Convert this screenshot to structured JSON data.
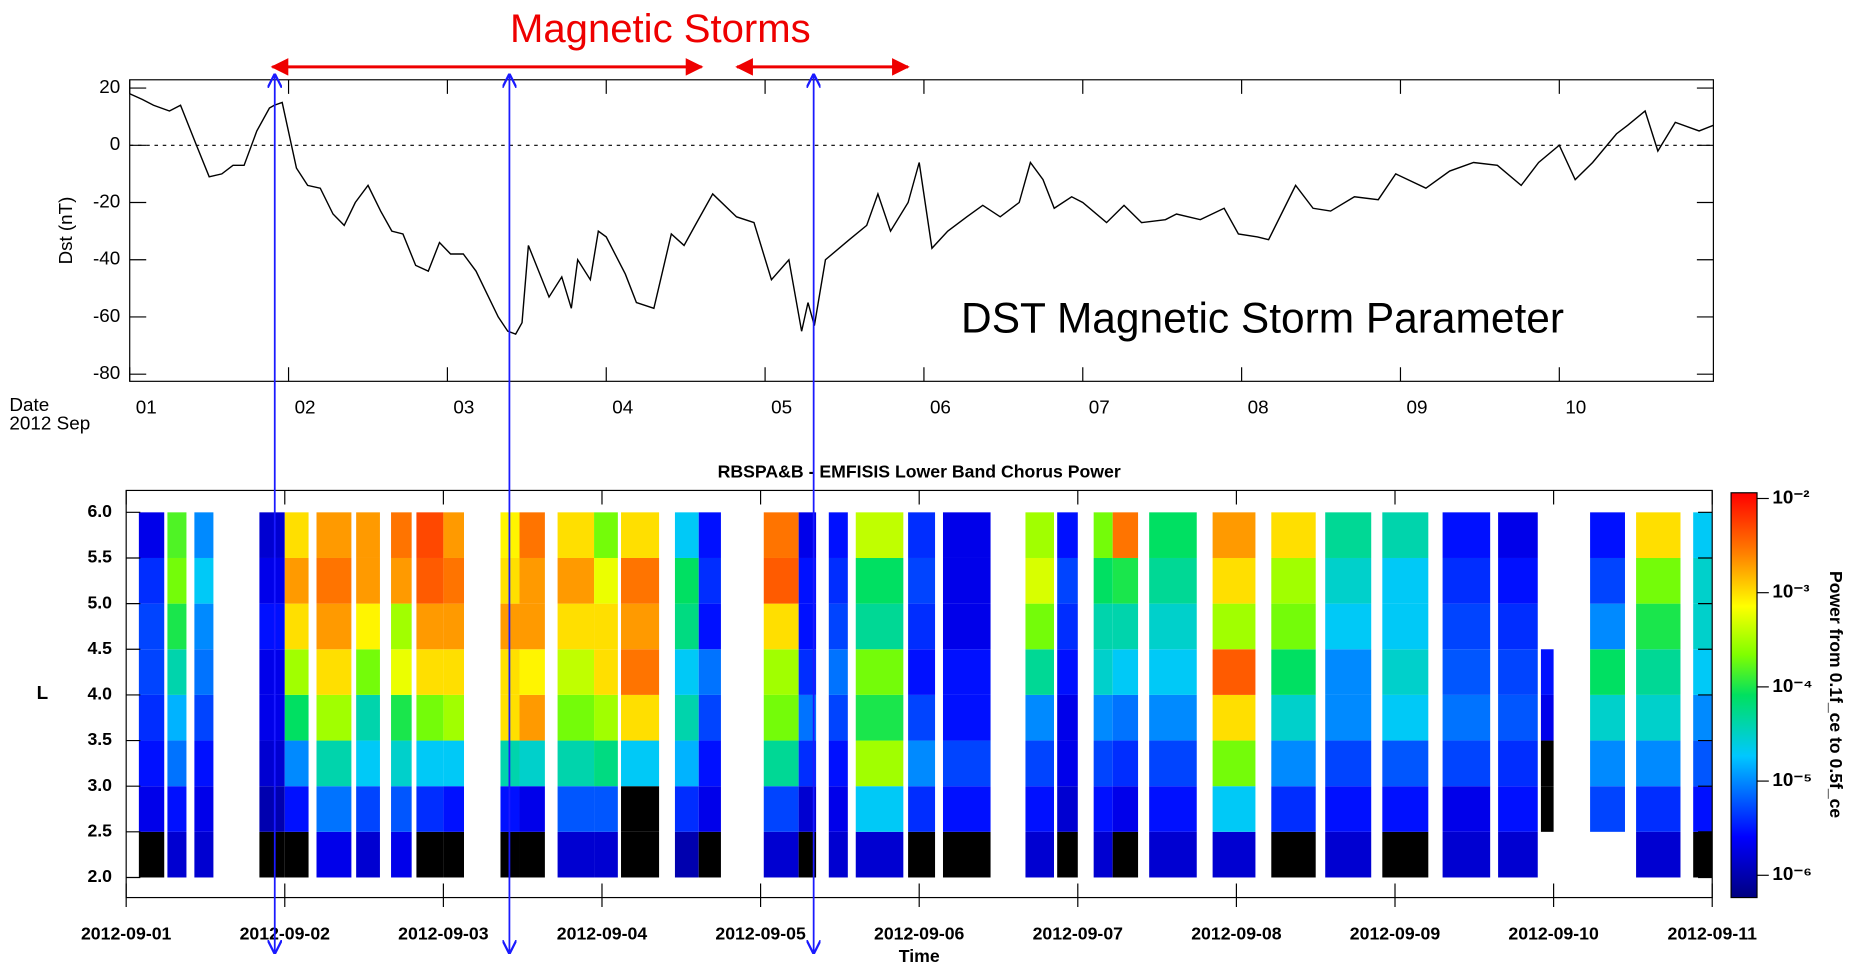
{
  "chart_data": [
    {
      "type": "line",
      "ylabel": "Dst (nT)",
      "xlabel": "Date",
      "xlabel_sub": "2012 Sep",
      "annotations": [
        "Magnetic Storms",
        "DST Magnetic Storm Parameter"
      ],
      "color": "#000000",
      "reference_line": 0,
      "xlim": [
        1,
        10.97
      ],
      "xticks": [
        {
          "value": 1,
          "label": "01"
        },
        {
          "value": 2,
          "label": "02"
        },
        {
          "value": 3,
          "label": "03"
        },
        {
          "value": 4,
          "label": "04"
        },
        {
          "value": 5,
          "label": "05"
        },
        {
          "value": 6,
          "label": "06"
        },
        {
          "value": 7,
          "label": "07"
        },
        {
          "value": 8,
          "label": "08"
        },
        {
          "value": 9,
          "label": "09"
        },
        {
          "value": 10,
          "label": "10"
        }
      ],
      "ylim": [
        -82.5,
        22.9
      ],
      "yticks": [
        -80,
        -60,
        -40,
        -20,
        0,
        20
      ],
      "x": [
        1.0,
        1.08,
        1.15,
        1.25,
        1.32,
        1.42,
        1.5,
        1.58,
        1.65,
        1.72,
        1.8,
        1.88,
        1.91,
        1.96,
        2.05,
        2.12,
        2.2,
        2.28,
        2.35,
        2.42,
        2.5,
        2.58,
        2.65,
        2.72,
        2.8,
        2.88,
        2.95,
        3.02,
        3.1,
        3.18,
        3.25,
        3.32,
        3.38,
        3.43,
        3.47,
        3.51,
        3.64,
        3.72,
        3.78,
        3.82,
        3.9,
        3.95,
        4.0,
        4.12,
        4.19,
        4.3,
        4.41,
        4.49,
        4.56,
        4.67,
        4.82,
        4.93,
        5.04,
        5.15,
        5.23,
        5.27,
        5.31,
        5.38,
        5.53,
        5.64,
        5.71,
        5.79,
        5.9,
        5.97,
        6.05,
        6.15,
        6.27,
        6.37,
        6.48,
        6.6,
        6.67,
        6.75,
        6.82,
        6.93,
        7.0,
        7.15,
        7.26,
        7.37,
        7.52,
        7.59,
        7.74,
        7.89,
        7.98,
        8.1,
        8.17,
        8.34,
        8.45,
        8.56,
        8.71,
        8.86,
        8.97,
        9.16,
        9.31,
        9.46,
        9.61,
        9.76,
        9.87,
        10.0,
        10.1,
        10.21,
        10.36,
        10.43,
        10.54,
        10.62,
        10.73,
        10.88,
        10.97
      ],
      "values": [
        18,
        16,
        14,
        12,
        14,
        0,
        -11,
        -10,
        -7,
        -7,
        5,
        13,
        14,
        15,
        -8,
        -14,
        -15,
        -24,
        -28,
        -20,
        -14,
        -23,
        -30,
        -31,
        -42,
        -44,
        -34,
        -38,
        -38,
        -44,
        -52,
        -60,
        -65,
        -66,
        -62,
        -35,
        -53,
        -46,
        -57,
        -40,
        -47,
        -30,
        -32,
        -45,
        -55,
        -57,
        -31,
        -35,
        -28,
        -17,
        -25,
        -27,
        -47,
        -40,
        -65,
        -55,
        -63,
        -40,
        -33,
        -28,
        -17,
        -30,
        -20,
        -6,
        -36,
        -30,
        -25,
        -21,
        -25,
        -20,
        -6,
        -12,
        -22,
        -18,
        -20,
        -27,
        -21,
        -27,
        -26,
        -24,
        -26,
        -22,
        -31,
        -32,
        -33,
        -14,
        -22,
        -23,
        -18,
        -19,
        -10,
        -15,
        -9,
        -6,
        -7,
        -14,
        -6,
        0,
        -12,
        -6,
        4,
        7,
        12,
        -2,
        8,
        5,
        7
      ]
    },
    {
      "type": "spectrogram",
      "title": "RBSPA&B - EMFISIS Lower Band Chorus Power",
      "xlabel": "Time",
      "ylabel": "L",
      "colorbar_label": "Power from 0.1f_ce to 0.5f_ce",
      "log_color": true,
      "clim": [
        5.8e-07,
        0.0115
      ],
      "cticks": [
        {
          "value": 0.01,
          "label": "10⁻²"
        },
        {
          "value": 0.001,
          "label": "10⁻³"
        },
        {
          "value": 0.0001,
          "label": "10⁻⁴"
        },
        {
          "value": 1e-05,
          "label": "10⁻⁵"
        },
        {
          "value": 1e-06,
          "label": "10⁻⁶"
        }
      ],
      "xlim": [
        1,
        11
      ],
      "xticks": [
        {
          "value": 1,
          "label": "2012-09-01"
        },
        {
          "value": 2,
          "label": "2012-09-02"
        },
        {
          "value": 3,
          "label": "2012-09-03"
        },
        {
          "value": 4,
          "label": "2012-09-04"
        },
        {
          "value": 5,
          "label": "2012-09-05"
        },
        {
          "value": 6,
          "label": "2012-09-06"
        },
        {
          "value": 7,
          "label": "2012-09-07"
        },
        {
          "value": 8,
          "label": "2012-09-08"
        },
        {
          "value": 9,
          "label": "2012-09-09"
        },
        {
          "value": 10,
          "label": "2012-09-10"
        },
        {
          "value": 11,
          "label": "2012-09-11"
        }
      ],
      "ylim": [
        1.78,
        6.24
      ],
      "yticks": [
        {
          "value": 2,
          "label": "2.0"
        },
        {
          "value": 2.5,
          "label": "2.5"
        },
        {
          "value": 3,
          "label": "3.0"
        },
        {
          "value": 3.5,
          "label": "3.5"
        },
        {
          "value": 4,
          "label": "4.0"
        },
        {
          "value": 4.5,
          "label": "4.5"
        },
        {
          "value": 5,
          "label": "5.0"
        },
        {
          "value": 5.5,
          "label": "5.5"
        },
        {
          "value": 6,
          "label": "6.0"
        }
      ],
      "bins": [
        2.0,
        2.5,
        3.0,
        3.5,
        4.0,
        4.5,
        5.0,
        5.5,
        6.0
      ],
      "columns": [
        {
          "start": 1.08,
          "end": 1.24,
          "values": [
            4e-07,
            2e-06,
            3e-06,
            4e-06,
            5e-06,
            5e-06,
            4e-06,
            2e-06
          ]
        },
        {
          "start": 1.26,
          "end": 1.38,
          "values": [
            1.5e-06,
            3e-06,
            8e-06,
            1.5e-05,
            4e-05,
            0.0001,
            0.0002,
            0.00015
          ]
        },
        {
          "start": 1.43,
          "end": 1.55,
          "values": [
            1.5e-06,
            2e-06,
            3e-06,
            5e-06,
            8e-06,
            1e-05,
            2e-05,
            1e-05
          ]
        },
        {
          "start": 1.84,
          "end": 2.0,
          "values": [
            4e-07,
            1e-06,
            1.5e-06,
            2e-06,
            2e-06,
            3e-06,
            2e-06,
            1.5e-06
          ]
        },
        {
          "start": 2.0,
          "end": 2.15,
          "values": [
            5e-07,
            3e-06,
            1e-05,
            8e-05,
            0.0003,
            0.001,
            0.002,
            0.001
          ]
        },
        {
          "start": 2.2,
          "end": 2.42,
          "values": [
            2e-06,
            8e-06,
            4e-05,
            0.0003,
            0.001,
            0.002,
            0.003,
            0.002
          ]
        },
        {
          "start": 2.45,
          "end": 2.6,
          "values": [
            1.5e-06,
            5e-06,
            2e-05,
            4e-05,
            0.0002,
            0.0008,
            0.002,
            0.002
          ]
        },
        {
          "start": 2.67,
          "end": 2.8,
          "values": [
            2e-06,
            6e-06,
            3e-05,
            0.0001,
            0.0006,
            0.0003,
            0.002,
            0.003
          ]
        },
        {
          "start": 2.83,
          "end": 3.0,
          "values": [
            5e-07,
            4e-06,
            2e-05,
            0.0002,
            0.001,
            0.002,
            0.004,
            0.005
          ]
        },
        {
          "start": 3.0,
          "end": 3.13,
          "values": [
            5e-07,
            3e-06,
            2e-05,
            0.0003,
            0.001,
            0.002,
            0.003,
            0.002
          ]
        },
        {
          "start": 3.36,
          "end": 3.48,
          "values": [
            5e-07,
            3e-06,
            4e-05,
            0.001,
            0.001,
            0.002,
            0.001,
            0.0008
          ]
        },
        {
          "start": 3.48,
          "end": 3.64,
          "values": [
            5e-07,
            2e-06,
            3e-05,
            0.002,
            0.0008,
            0.002,
            0.002,
            0.003
          ]
        },
        {
          "start": 3.72,
          "end": 3.95,
          "values": [
            1.5e-06,
            6e-06,
            4e-05,
            0.0002,
            0.0004,
            0.001,
            0.002,
            0.001
          ]
        },
        {
          "start": 3.95,
          "end": 4.1,
          "values": [
            1.5e-06,
            6e-06,
            6e-05,
            0.0003,
            0.001,
            0.001,
            0.0006,
            0.0002
          ]
        },
        {
          "start": 4.12,
          "end": 4.36,
          "values": [
            5e-07,
            5e-07,
            2e-05,
            0.001,
            0.003,
            0.002,
            0.003,
            0.001
          ]
        },
        {
          "start": 4.46,
          "end": 4.61,
          "values": [
            1e-06,
            4e-06,
            1.5e-05,
            4e-05,
            2e-05,
            6e-05,
            8e-05,
            2e-05
          ]
        },
        {
          "start": 4.61,
          "end": 4.75,
          "values": [
            5e-07,
            2e-06,
            3e-06,
            5e-06,
            8e-06,
            3e-06,
            4e-06,
            3e-06
          ]
        },
        {
          "start": 5.02,
          "end": 5.24,
          "values": [
            1.5e-06,
            5e-06,
            5e-05,
            0.0002,
            0.0003,
            0.001,
            0.004,
            0.003
          ]
        },
        {
          "start": 5.24,
          "end": 5.35,
          "values": [
            5e-07,
            1.5e-06,
            4e-06,
            8e-06,
            4e-06,
            3e-06,
            3e-06,
            2e-06
          ]
        },
        {
          "start": 5.43,
          "end": 5.55,
          "values": [
            1.5e-06,
            2e-06,
            3e-06,
            5e-06,
            8e-06,
            5e-06,
            4e-06,
            3e-06
          ]
        },
        {
          "start": 5.6,
          "end": 5.9,
          "values": [
            1.5e-06,
            2e-05,
            0.0003,
            0.0001,
            0.0002,
            5e-05,
            8e-05,
            0.0004
          ]
        },
        {
          "start": 5.93,
          "end": 6.1,
          "values": [
            5e-07,
            4e-06,
            1e-05,
            5e-06,
            3e-06,
            4e-06,
            5e-06,
            4e-06
          ]
        },
        {
          "start": 6.15,
          "end": 6.45,
          "values": [
            5e-07,
            3e-06,
            5e-06,
            3e-06,
            3e-06,
            2e-06,
            2e-06,
            2e-06
          ]
        },
        {
          "start": 6.67,
          "end": 6.85,
          "values": [
            1.5e-06,
            3e-06,
            5e-06,
            1e-05,
            5e-05,
            0.0002,
            0.0005,
            0.0003
          ]
        },
        {
          "start": 6.87,
          "end": 7.0,
          "values": [
            5e-07,
            1.5e-06,
            2e-06,
            2e-06,
            3e-06,
            4e-06,
            5e-06,
            3e-06
          ]
        },
        {
          "start": 7.1,
          "end": 7.22,
          "values": [
            1.5e-06,
            3e-06,
            5e-06,
            1e-05,
            3e-05,
            4e-05,
            8e-05,
            0.0002
          ]
        },
        {
          "start": 7.22,
          "end": 7.38,
          "values": [
            5e-07,
            2e-06,
            4e-06,
            8e-06,
            2e-05,
            4e-05,
            0.0001,
            0.003
          ]
        },
        {
          "start": 7.45,
          "end": 7.75,
          "values": [
            1.5e-06,
            3e-06,
            5e-06,
            1e-05,
            2e-05,
            3e-05,
            5e-05,
            8e-05
          ]
        },
        {
          "start": 7.85,
          "end": 8.12,
          "values": [
            1.5e-06,
            2e-05,
            0.0002,
            0.001,
            0.004,
            0.0003,
            0.001,
            0.002
          ]
        },
        {
          "start": 8.22,
          "end": 8.5,
          "values": [
            5e-07,
            4e-06,
            1e-05,
            3e-05,
            8e-05,
            0.0002,
            0.0003,
            0.001
          ]
        },
        {
          "start": 8.56,
          "end": 8.85,
          "values": [
            1.5e-06,
            3e-06,
            5e-06,
            1e-05,
            1e-05,
            2e-05,
            3e-05,
            5e-05
          ]
        },
        {
          "start": 8.92,
          "end": 9.21,
          "values": [
            5e-07,
            3e-06,
            6e-06,
            2e-05,
            3e-05,
            2e-05,
            2e-05,
            4e-05
          ]
        },
        {
          "start": 9.3,
          "end": 9.6,
          "values": [
            1.5e-06,
            2e-06,
            5e-06,
            8e-06,
            6e-06,
            5e-06,
            4e-06,
            3e-06
          ]
        },
        {
          "start": 9.65,
          "end": 9.9,
          "values": [
            1.5e-06,
            3e-06,
            4e-06,
            6e-06,
            5e-06,
            4e-06,
            3e-06,
            2e-06
          ]
        },
        {
          "start": 9.92,
          "end": 10.0,
          "values": [
            null,
            5e-07,
            5e-07,
            2e-06,
            3e-06,
            null,
            null,
            null
          ]
        },
        {
          "start": 10.23,
          "end": 10.45,
          "values": [
            null,
            5e-06,
            1e-05,
            3e-05,
            8e-05,
            1e-05,
            5e-06,
            3e-06
          ]
        },
        {
          "start": 10.52,
          "end": 10.8,
          "values": [
            1.5e-06,
            4e-06,
            1e-05,
            3e-05,
            5e-05,
            0.0001,
            0.0002,
            0.001
          ]
        },
        {
          "start": 10.88,
          "end": 11.0,
          "values": [
            5e-07,
            3e-06,
            6e-06,
            1e-05,
            2e-05,
            3e-05,
            3e-05,
            2e-05
          ]
        }
      ]
    }
  ]
}
